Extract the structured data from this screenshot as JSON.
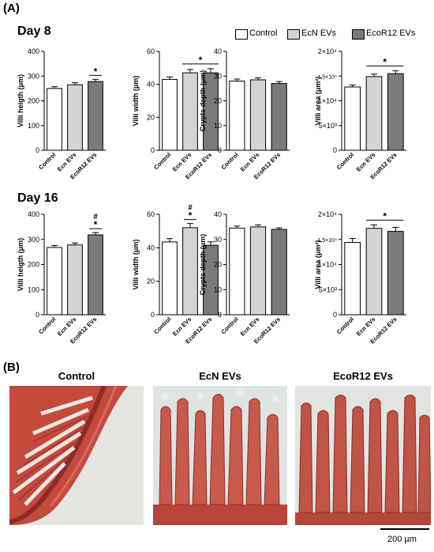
{
  "panel_a_label": "(A)",
  "panel_b_label": "(B)",
  "days": [
    "Day 8",
    "Day 16"
  ],
  "legend": [
    {
      "label": "Control",
      "color": "#ffffff"
    },
    {
      "label": "EcN EVs",
      "color": "#d4d4d4"
    },
    {
      "label": "EcoR12 EVs",
      "color": "#7b7b7b"
    }
  ],
  "chart_data": [
    {
      "type": "bar",
      "day": "Day 8",
      "ylabel": "Villi heigth (μm)",
      "ylim": [
        0,
        400
      ],
      "yticks": [
        "0",
        "100",
        "200",
        "300",
        "400"
      ],
      "categories": [
        "Control",
        "Ecn EVs",
        "EcoR12 EVs"
      ],
      "values": [
        250,
        265,
        278
      ],
      "errors": [
        7,
        8,
        9
      ],
      "annotations": [
        {
          "bar": 2,
          "text": "*"
        }
      ]
    },
    {
      "type": "bar",
      "day": "Day 8",
      "ylabel": "Villi width (μm)",
      "ylim": [
        0,
        60
      ],
      "yticks": [
        "0",
        "20",
        "40",
        "60"
      ],
      "categories": [
        "Control",
        "Ecn EVs",
        "EcoR12 EVs"
      ],
      "values": [
        43,
        47,
        47
      ],
      "errors": [
        1.5,
        2,
        2.5
      ],
      "annotations": [
        {
          "from": 1,
          "to": 2,
          "text": "*"
        }
      ]
    },
    {
      "type": "bar",
      "day": "Day 8",
      "ylabel": "Crypts depth (μm)",
      "ylim": [
        0,
        40
      ],
      "yticks": [
        "0",
        "10",
        "20",
        "30",
        "40"
      ],
      "categories": [
        "Control",
        "Ecn EVs",
        "EcoR12 EVs"
      ],
      "values": [
        28,
        28.5,
        27
      ],
      "errors": [
        0.8,
        0.8,
        0.8
      ],
      "annotations": []
    },
    {
      "type": "bar",
      "day": "Day 8",
      "ylabel": "Villi area (μm²)",
      "ylim": [
        0,
        20000
      ],
      "yticks": [
        "0",
        "5×10³",
        "1×10⁴",
        "1.5×10⁴",
        "2×10⁴"
      ],
      "categories": [
        "Control",
        "Ecn EVs",
        "EcoR12 EVs"
      ],
      "values": [
        12800,
        14900,
        15500
      ],
      "errors": [
        400,
        500,
        600
      ],
      "annotations": [
        {
          "from": 1,
          "to": 2,
          "text": "*"
        }
      ]
    },
    {
      "type": "bar",
      "day": "Day 16",
      "ylabel": "Villi heigth (μm)",
      "ylim": [
        0,
        400
      ],
      "yticks": [
        "0",
        "100",
        "200",
        "300",
        "400"
      ],
      "categories": [
        "Control",
        "Ecn EVs",
        "EcoR12 EVs"
      ],
      "values": [
        268,
        278,
        318
      ],
      "errors": [
        8,
        8,
        9
      ],
      "annotations": [
        {
          "bar": 2,
          "text": "*"
        },
        {
          "bar": 2,
          "text": "#"
        }
      ]
    },
    {
      "type": "bar",
      "day": "Day 16",
      "ylabel": "Villi width (μm)",
      "ylim": [
        0,
        60
      ],
      "yticks": [
        "0",
        "20",
        "40",
        "60"
      ],
      "categories": [
        "Control",
        "Ecn EVs",
        "EcoR12 EVs"
      ],
      "values": [
        43.5,
        52,
        41.5
      ],
      "errors": [
        2,
        2.5,
        2
      ],
      "annotations": [
        {
          "bar": 1,
          "text": "*"
        },
        {
          "bar": 1,
          "text": "#"
        }
      ]
    },
    {
      "type": "bar",
      "day": "Day 16",
      "ylabel": "Crypts depth (μm)",
      "ylim": [
        0,
        40
      ],
      "yticks": [
        "0",
        "10",
        "20",
        "30",
        "40"
      ],
      "categories": [
        "Control",
        "Ecn EVs",
        "EcoR12 EVs"
      ],
      "values": [
        34.5,
        35,
        34
      ],
      "errors": [
        0.8,
        0.8,
        0.6
      ],
      "annotations": []
    },
    {
      "type": "bar",
      "day": "Day 16",
      "ylabel": "Villi area (μm²)",
      "ylim": [
        0,
        20000
      ],
      "yticks": [
        "0",
        "5×10³",
        "1×10⁴",
        "1.5×10⁴",
        "2×10⁴"
      ],
      "categories": [
        "Control",
        "Ecn EVs",
        "EcoR12 EVs"
      ],
      "values": [
        14400,
        17200,
        16600
      ],
      "errors": [
        800,
        700,
        800
      ],
      "annotations": [
        {
          "from": 1,
          "to": 2,
          "text": "*"
        }
      ]
    }
  ],
  "micrographs": [
    {
      "title": "Control"
    },
    {
      "title": "EcN EVs"
    },
    {
      "title": "EcoR12 EVs"
    }
  ],
  "scale_bar": {
    "label": "200 µm"
  }
}
